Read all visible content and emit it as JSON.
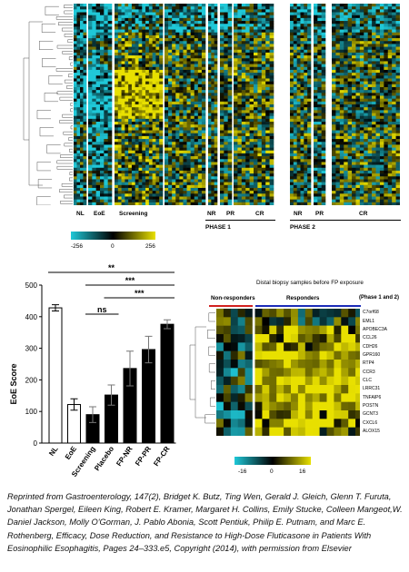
{
  "top_heatmap": {
    "group_labels": [
      "NL",
      "EoE",
      "Screening",
      "NR",
      "PR",
      "CR",
      "NR",
      "PR",
      "CR"
    ],
    "phase1_label": "PHASE 1",
    "phase2_label": "PHASE 2",
    "colorbar_ticks": [
      "-256",
      "0",
      "256"
    ],
    "colors": {
      "low": "#1fc8d8",
      "mid": "#000000",
      "high": "#e8e000"
    }
  },
  "bottom_heatmap": {
    "title": "Distal biopsy samples before FP exposure",
    "nonresponders_label": "Non-responders",
    "responders_label": "Responders",
    "phase_label": "(Phase 1 and 2)",
    "genes": [
      "C7orf68",
      "EML1",
      "APOBEC3A",
      "CCL26",
      "CDH26",
      "GPR160",
      "RTP4",
      "CCR3",
      "CLC",
      "LRRC31",
      "TNFAIP6",
      "POSTN",
      "GCNT3",
      "CXCL6",
      "ALOX15"
    ],
    "colorbar_ticks": [
      "-16",
      "0",
      "16"
    ],
    "colors": {
      "nonresponders_line": "#d22020",
      "responders_line": "#1b2bb8"
    }
  },
  "chart_data": {
    "type": "bar",
    "ylabel": "EoE Score",
    "ylim": [
      0,
      500
    ],
    "yticks": [
      0,
      100,
      200,
      300,
      400,
      500
    ],
    "categories": [
      "NL",
      "EoE",
      "Screening",
      "Placebo",
      "FP-NR",
      "FP-PR",
      "FP-CR"
    ],
    "values": [
      428,
      122,
      90,
      152,
      236,
      296,
      376
    ],
    "errors": [
      10,
      18,
      25,
      32,
      55,
      42,
      14
    ],
    "fills": [
      "white",
      "white",
      "black",
      "black",
      "black",
      "black",
      "black"
    ],
    "significance": [
      {
        "label": "**",
        "from": "NL",
        "to": "FP-CR"
      },
      {
        "label": "***",
        "from": "Screening",
        "to": "FP-CR"
      },
      {
        "label": "***",
        "from": "Placebo",
        "to": "FP-CR"
      },
      {
        "label": "ns",
        "from": "Screening",
        "to": "Placebo"
      }
    ]
  },
  "caption": "Reprinted from Gastroenterology, 147(2), Bridget K. Butz, Ting Wen, Gerald J. Gleich, Glenn T. Furuta, Jonathan Spergel, Eileen King, Robert E. Kramer, Margaret H. Collins, Emily Stucke, Colleen Mangeot,W. Daniel Jackson, Molly O'Gorman, J. Pablo Abonia, Scott Pentiuk, Philip E. Putnam, and Marc E. Rothenberg, Efficacy, Dose Reduction, and Resistance to High-Dose Fluticasone in Patients With Eosinophilic Esophagitis, Pages 24–333.e5, Copyright (2014), with permission from Elsevier"
}
